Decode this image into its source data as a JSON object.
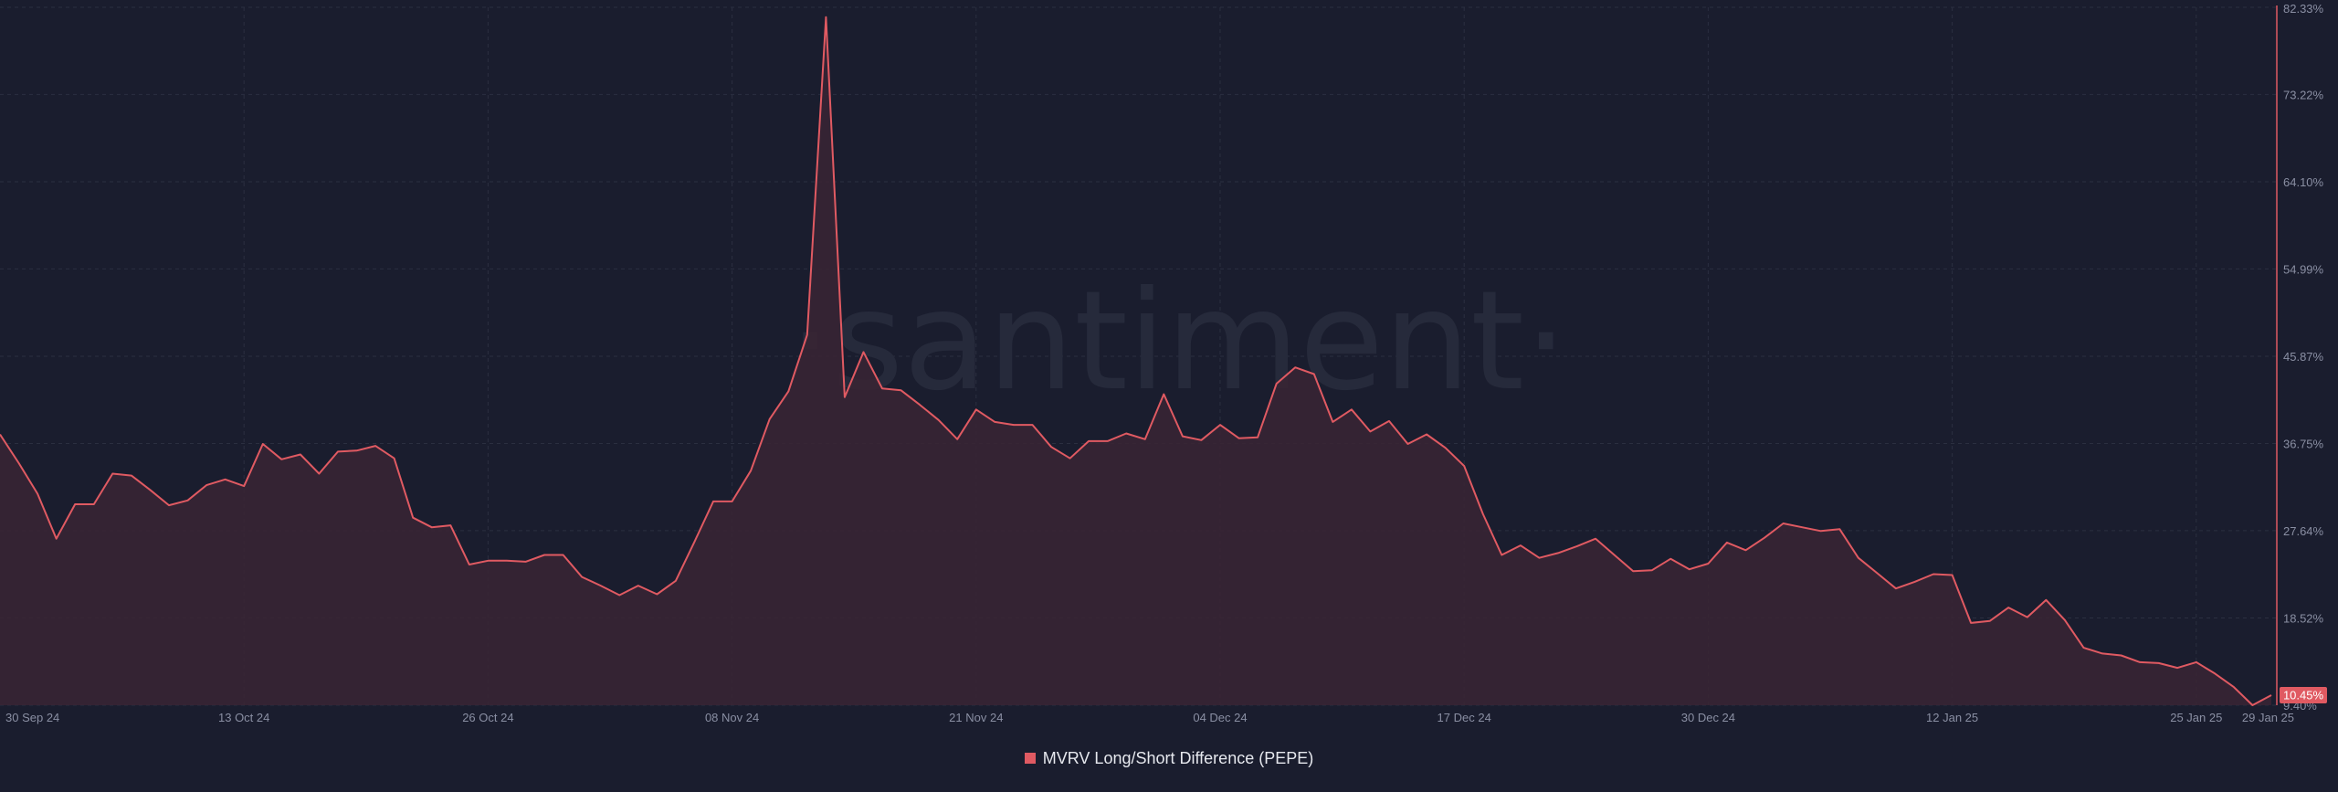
{
  "colors": {
    "series": "#e05a62",
    "fill": "#3a2534",
    "background": "#1a1d2e",
    "grid": "#2b2f40",
    "axis_text": "#8a8fa3"
  },
  "watermark": {
    "text": "·santiment·"
  },
  "legend": {
    "label": "MVRV Long/Short Difference (PEPE)"
  },
  "last_value_label": "10.45%",
  "chart_data": {
    "type": "area",
    "title": "",
    "xlabel": "",
    "ylabel": "",
    "ylim": [
      9.4,
      82.33
    ],
    "grid": true,
    "legend_position": "bottom-center",
    "x_ticks": [
      "30 Sep 24",
      "13 Oct 24",
      "26 Oct 24",
      "08 Nov 24",
      "21 Nov 24",
      "04 Dec 24",
      "17 Dec 24",
      "30 Dec 24",
      "12 Jan 25",
      "25 Jan 25",
      "29 Jan 25"
    ],
    "y_ticks": [
      "82.33%",
      "73.22%",
      "64.10%",
      "54.99%",
      "45.87%",
      "36.75%",
      "27.64%",
      "18.52%",
      "9.40%"
    ],
    "y_tick_values": [
      82.33,
      73.22,
      64.1,
      54.99,
      45.87,
      36.75,
      27.64,
      18.52,
      9.4
    ],
    "series": [
      {
        "name": "MVRV Long/Short Difference (PEPE)",
        "x": [
          "30 Sep 24",
          "01 Oct 24",
          "02 Oct 24",
          "03 Oct 24",
          "04 Oct 24",
          "05 Oct 24",
          "06 Oct 24",
          "07 Oct 24",
          "08 Oct 24",
          "09 Oct 24",
          "10 Oct 24",
          "11 Oct 24",
          "12 Oct 24",
          "13 Oct 24",
          "14 Oct 24",
          "15 Oct 24",
          "16 Oct 24",
          "17 Oct 24",
          "18 Oct 24",
          "19 Oct 24",
          "20 Oct 24",
          "21 Oct 24",
          "22 Oct 24",
          "23 Oct 24",
          "24 Oct 24",
          "25 Oct 24",
          "26 Oct 24",
          "27 Oct 24",
          "28 Oct 24",
          "29 Oct 24",
          "30 Oct 24",
          "31 Oct 24",
          "01 Nov 24",
          "02 Nov 24",
          "03 Nov 24",
          "04 Nov 24",
          "05 Nov 24",
          "06 Nov 24",
          "07 Nov 24",
          "08 Nov 24",
          "09 Nov 24",
          "10 Nov 24",
          "11 Nov 24",
          "12 Nov 24",
          "13 Nov 24",
          "14 Nov 24",
          "15 Nov 24",
          "16 Nov 24",
          "17 Nov 24",
          "18 Nov 24",
          "19 Nov 24",
          "20 Nov 24",
          "21 Nov 24",
          "22 Nov 24",
          "23 Nov 24",
          "24 Nov 24",
          "25 Nov 24",
          "26 Nov 24",
          "27 Nov 24",
          "28 Nov 24",
          "29 Nov 24",
          "30 Nov 24",
          "01 Dec 24",
          "02 Dec 24",
          "03 Dec 24",
          "04 Dec 24",
          "05 Dec 24",
          "06 Dec 24",
          "07 Dec 24",
          "08 Dec 24",
          "09 Dec 24",
          "10 Dec 24",
          "11 Dec 24",
          "12 Dec 24",
          "13 Dec 24",
          "14 Dec 24",
          "15 Dec 24",
          "16 Dec 24",
          "17 Dec 24",
          "18 Dec 24",
          "19 Dec 24",
          "20 Dec 24",
          "21 Dec 24",
          "22 Dec 24",
          "23 Dec 24",
          "24 Dec 24",
          "25 Dec 24",
          "26 Dec 24",
          "27 Dec 24",
          "28 Dec 24",
          "29 Dec 24",
          "30 Dec 24",
          "31 Dec 24",
          "01 Jan 25",
          "02 Jan 25",
          "03 Jan 25",
          "04 Jan 25",
          "05 Jan 25",
          "06 Jan 25",
          "07 Jan 25",
          "08 Jan 25",
          "09 Jan 25",
          "10 Jan 25",
          "11 Jan 25",
          "12 Jan 25",
          "13 Jan 25",
          "14 Jan 25",
          "15 Jan 25",
          "16 Jan 25",
          "17 Jan 25",
          "18 Jan 25",
          "19 Jan 25",
          "20 Jan 25",
          "21 Jan 25",
          "22 Jan 25",
          "23 Jan 25",
          "24 Jan 25",
          "25 Jan 25",
          "26 Jan 25",
          "27 Jan 25",
          "28 Jan 25",
          "29 Jan 25"
        ],
        "values": [
          37.7,
          34.7,
          31.5,
          26.8,
          30.4,
          30.4,
          33.6,
          33.4,
          31.9,
          30.3,
          30.8,
          32.4,
          33.0,
          32.3,
          36.7,
          35.1,
          35.6,
          33.6,
          35.9,
          36.0,
          36.5,
          35.2,
          29.0,
          28.0,
          28.2,
          24.1,
          24.5,
          24.5,
          24.4,
          25.1,
          25.1,
          22.8,
          21.9,
          20.9,
          21.9,
          21.0,
          22.4,
          26.5,
          30.7,
          30.7,
          33.9,
          39.3,
          42.2,
          48.1,
          81.3,
          41.6,
          46.3,
          42.5,
          42.3,
          40.8,
          39.2,
          37.2,
          40.3,
          39.0,
          38.7,
          38.7,
          36.4,
          35.2,
          37.0,
          37.0,
          37.8,
          37.2,
          41.9,
          37.5,
          37.1,
          38.7,
          37.3,
          37.4,
          43.0,
          44.7,
          44.0,
          39.0,
          40.3,
          38.0,
          39.1,
          36.7,
          37.7,
          36.3,
          34.4,
          29.4,
          25.1,
          26.1,
          24.8,
          25.3,
          26.0,
          26.8,
          25.1,
          23.4,
          23.5,
          24.7,
          23.6,
          24.2,
          26.4,
          25.6,
          26.9,
          28.4,
          28.0,
          27.6,
          27.8,
          24.8,
          23.2,
          21.6,
          22.3,
          23.1,
          23.0,
          18.0,
          18.2,
          19.6,
          18.6,
          20.4,
          18.3,
          15.4,
          14.8,
          14.6,
          13.9,
          13.8,
          13.3,
          13.9,
          12.7,
          11.3,
          9.4,
          10.45
        ]
      }
    ]
  }
}
